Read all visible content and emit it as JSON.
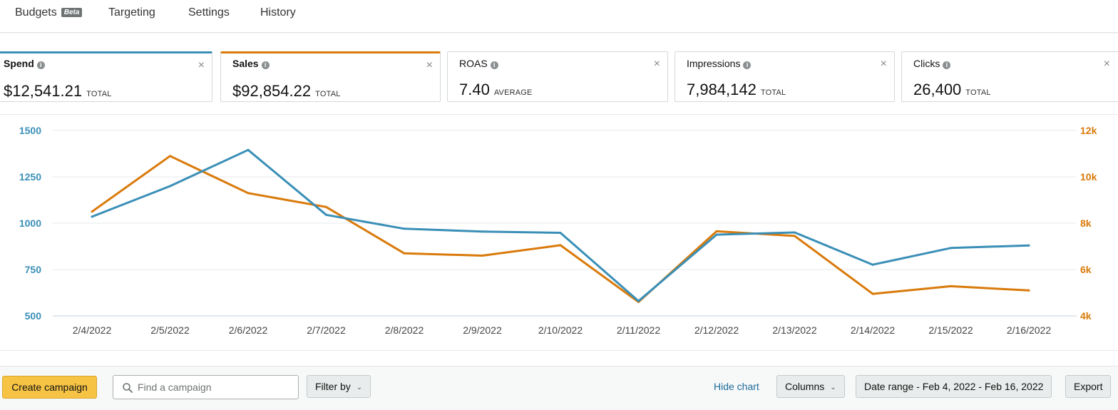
{
  "tabs": [
    {
      "label": "Budgets",
      "badge": "Beta"
    },
    {
      "label": "Targeting"
    },
    {
      "label": "Settings"
    },
    {
      "label": "History"
    }
  ],
  "metrics": [
    {
      "name": "Spend",
      "value": "$12,541.21",
      "agg": "TOTAL",
      "color": "#3a8fb7"
    },
    {
      "name": "Sales",
      "value": "$92,854.22",
      "agg": "TOTAL",
      "color": "#d97a0b"
    },
    {
      "name": "ROAS",
      "value": "7.40",
      "agg": "AVERAGE"
    },
    {
      "name": "Impressions",
      "value": "7,984,142",
      "agg": "TOTAL"
    },
    {
      "name": "Clicks",
      "value": "26,400",
      "agg": "TOTAL"
    }
  ],
  "icons": {
    "info": "i",
    "close": "×",
    "chevron": "⌄"
  },
  "chart_data": {
    "type": "line",
    "x": [
      "2/4/2022",
      "2/5/2022",
      "2/6/2022",
      "2/7/2022",
      "2/8/2022",
      "2/9/2022",
      "2/10/2022",
      "2/11/2022",
      "2/12/2022",
      "2/13/2022",
      "2/14/2022",
      "2/15/2022",
      "2/16/2022"
    ],
    "series": [
      {
        "name": "Spend",
        "axis": "left",
        "color": "#3a8fb7",
        "values": [
          1035,
          1200,
          1395,
          1045,
          970,
          955,
          948,
          580,
          938,
          950,
          776,
          866,
          880
        ]
      },
      {
        "name": "Sales",
        "axis": "right",
        "color": "#d97a0b",
        "values": [
          8500,
          10900,
          9300,
          8700,
          6700,
          6600,
          7050,
          4600,
          7650,
          7450,
          4950,
          5280,
          5100
        ]
      }
    ],
    "left_axis": {
      "min": 500,
      "max": 1500,
      "ticks": [
        "500",
        "750",
        "1000",
        "1250",
        "1500"
      ]
    },
    "right_axis": {
      "min": 4000,
      "max": 12000,
      "ticks": [
        "4k",
        "6k",
        "8k",
        "10k",
        "12k"
      ]
    },
    "grid": true
  },
  "toolbar": {
    "create_label": "Create campaign",
    "search_placeholder": "Find a campaign",
    "filter_label": "Filter by",
    "hide_chart_label": "Hide chart",
    "columns_label": "Columns",
    "date_range_label": "Date range - Feb 4, 2022 - Feb 16, 2022",
    "export_label": "Export"
  }
}
